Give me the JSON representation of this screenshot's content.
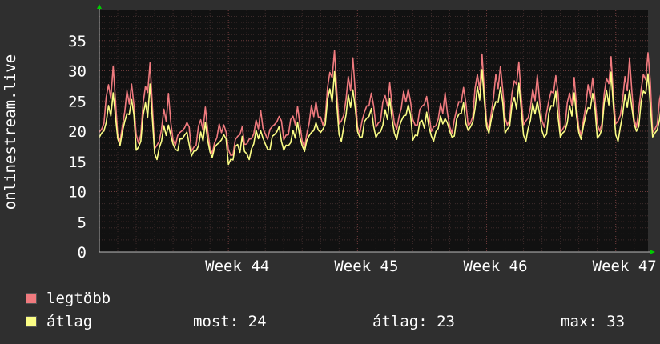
{
  "y_axis_label": "onlinestream.live",
  "legend": {
    "items": [
      {
        "label": "legtöbb",
        "color": "#f07a7e"
      },
      {
        "label": "átlag",
        "color": "#fbfd85"
      }
    ]
  },
  "stats": {
    "now_label": "most:",
    "now_value": "24",
    "avg_label": "átlag:",
    "avg_value": "23",
    "max_label": "max:",
    "max_value": "33"
  },
  "colors": {
    "background": "#2f2f2f",
    "plot_background": "#111111",
    "grid_major": "#6b3a3a",
    "grid_minor": "#3d2b2b",
    "text": "#ffffff",
    "axis_arrow": "#00cc00"
  },
  "chart_data": {
    "type": "line",
    "xlabel": "",
    "ylabel": "onlinestream.live",
    "ylim": [
      0,
      40
    ],
    "y_ticks": [
      0,
      5,
      10,
      15,
      20,
      25,
      30,
      35
    ],
    "x_range_weeks": [
      43.0,
      47.25
    ],
    "x_tick_labels": [
      {
        "label": "Week 44",
        "week": 44
      },
      {
        "label": "Week 45",
        "week": 45
      },
      {
        "label": "Week 46",
        "week": 46
      },
      {
        "label": "Week 47",
        "week": 47
      }
    ],
    "grid": true,
    "series": [
      {
        "name": "legtöbb",
        "color": "#f07a7e",
        "daily_peaks": [
          31,
          29,
          32,
          26,
          22,
          24,
          22,
          21,
          23,
          23,
          24,
          26,
          34,
          32,
          27,
          28,
          28,
          26,
          26,
          28,
          33,
          32,
          32,
          29,
          30,
          29,
          30,
          33,
          32,
          34,
          30,
          30,
          29,
          28,
          32,
          27,
          29,
          32,
          31,
          32
        ]
      },
      {
        "name": "átlag",
        "color": "#fbfd85",
        "daily_peaks": [
          26,
          26,
          28,
          22,
          20,
          21,
          20,
          19,
          21,
          21,
          21,
          22,
          30,
          28,
          24,
          25,
          25,
          23,
          23,
          25,
          30,
          28,
          28,
          26,
          27,
          26,
          27,
          30,
          28,
          30,
          27,
          27,
          26,
          25,
          28,
          24,
          26,
          30,
          28,
          28
        ]
      }
    ],
    "daily_troughs": {
      "legtöbb": [
        20,
        19,
        18,
        17,
        18,
        17,
        17,
        16,
        18,
        19,
        19,
        18,
        21,
        21,
        20,
        21,
        21,
        21,
        20,
        20,
        21,
        21,
        21,
        21,
        21,
        20,
        20,
        20,
        21,
        21,
        20,
        20,
        20,
        20,
        17,
        18,
        19,
        20,
        21,
        22
      ],
      "átlag": [
        19,
        18,
        17,
        16,
        17,
        16,
        16,
        15,
        16,
        17,
        17,
        17,
        20,
        19,
        19,
        19,
        19,
        19,
        19,
        19,
        20,
        20,
        20,
        19,
        19,
        19,
        19,
        19,
        19,
        20,
        19,
        19,
        19,
        19,
        16,
        17,
        18,
        19,
        20,
        20
      ]
    }
  }
}
